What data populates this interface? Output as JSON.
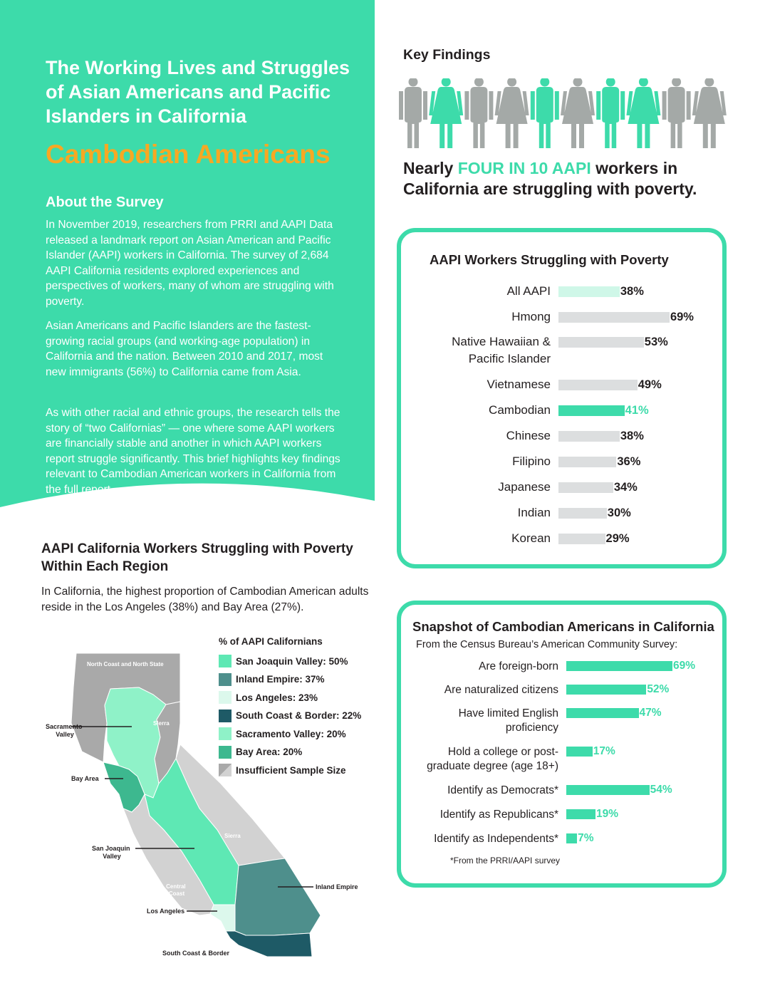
{
  "hero": {
    "title": "The Working Lives and Struggles of Asian Americans and Pacific Islanders in California",
    "subtitle": "Cambodian Americans",
    "about_heading": "About the Survey",
    "paragraphs": [
      "In November 2019, researchers from PRRI and AAPI Data released a landmark report on Asian American and Pacific Islander (AAPI) workers in California. The survey of 2,684 AAPI California residents explored experiences and perspectives of workers, many of whom are struggling with poverty.",
      "Asian Americans and Pacific Islanders are the fastest-growing racial groups (and working-age population) in California and the nation. Between 2010 and 2017, most new immigrants (56%) to California came from Asia.",
      "As with other racial and ethnic groups, the research tells the story of “two Californias” — one where some AAPI workers are financially stable and another in which AAPI workers report struggle significantly. This brief highlights key findings relevant to Cambodian American workers in California from the full report."
    ]
  },
  "region": {
    "heading": "AAPI California Workers Struggling with Poverty Within Each Region",
    "intro": "In California, the highest proportion of Cambodian American adults reside in the Los Angeles (38%) and Bay Area (27%).",
    "legend_title": "% of AAPI Californians",
    "legend": [
      {
        "label": "San Joaquin Valley: 50%",
        "color": "#5ee8b4"
      },
      {
        "label": "Inland Empire: 37%",
        "color": "#4e8f8c"
      },
      {
        "label": "Los Angeles: 23%",
        "color": "#dcf8ec"
      },
      {
        "label": "South Coast & Border: 22%",
        "color": "#1e5a66"
      },
      {
        "label": "Sacramento Valley: 20%",
        "color": "#8ff2c8"
      },
      {
        "label": "Bay Area: 20%",
        "color": "#3db88f"
      },
      {
        "label": "Insufficient Sample Size",
        "color": "#a9a9a9"
      }
    ],
    "map_labels": {
      "north_coast": "North Coast and North State",
      "sierra_north": "Sierra",
      "sierra_south": "Sierra",
      "sacramento": [
        "Sacramento",
        "Valley"
      ],
      "bay_area": "Bay Area",
      "san_joaquin": [
        "San Joaquin",
        "Valley"
      ],
      "central_coast": [
        "Central",
        "Coast"
      ],
      "inland_empire": "Inland Empire",
      "los_angeles": "Los Angeles",
      "south_coast": "South Coast & Border"
    }
  },
  "key_findings": {
    "title": "Key Findings",
    "people": [
      {
        "figure": "male",
        "highlight": false
      },
      {
        "figure": "female",
        "highlight": true
      },
      {
        "figure": "male",
        "highlight": false
      },
      {
        "figure": "female",
        "highlight": false
      },
      {
        "figure": "male",
        "highlight": true
      },
      {
        "figure": "female",
        "highlight": false
      },
      {
        "figure": "male",
        "highlight": true
      },
      {
        "figure": "female",
        "highlight": true
      },
      {
        "figure": "male",
        "highlight": false
      },
      {
        "figure": "female",
        "highlight": false
      }
    ],
    "statement_pre": "Nearly ",
    "statement_highlight": "FOUR IN 10 AAPI",
    "statement_post": " workers in California are struggling with poverty.",
    "colors": {
      "highlight": "#3ddbaa",
      "base": "#a4a9a7"
    }
  },
  "chart_data": [
    {
      "type": "bar",
      "orientation": "horizontal",
      "title": "AAPI Workers Struggling with Poverty",
      "categories": [
        "All AAPI",
        "Hmong",
        "Native Hawaiian & Pacific Islander",
        "Vietnamese",
        "Cambodian",
        "Chinese",
        "Filipino",
        "Japanese",
        "Indian",
        "Korean"
      ],
      "category_lines": [
        [
          "All AAPI"
        ],
        [
          "Hmong"
        ],
        [
          "Native Hawaiian &",
          "Pacific Islander"
        ],
        [
          "Vietnamese"
        ],
        [
          "Cambodian"
        ],
        [
          "Chinese"
        ],
        [
          "Filipino"
        ],
        [
          "Japanese"
        ],
        [
          "Indian"
        ],
        [
          "Korean"
        ]
      ],
      "values": [
        38,
        69,
        53,
        49,
        41,
        38,
        36,
        34,
        30,
        29
      ],
      "value_labels": [
        "38%",
        "69%",
        "53%",
        "49%",
        "41%",
        "38%",
        "36%",
        "34%",
        "30%",
        "29%"
      ],
      "bar_colors": [
        "#cff7e8",
        "#dcdedf",
        "#dcdedf",
        "#dcdedf",
        "#3ddbaa",
        "#dcdedf",
        "#dcdedf",
        "#dcdedf",
        "#dcdedf",
        "#dcdedf"
      ],
      "label_colors": [
        "#231f20",
        "#231f20",
        "#231f20",
        "#231f20",
        "#3ddbaa",
        "#231f20",
        "#231f20",
        "#231f20",
        "#231f20",
        "#231f20"
      ],
      "xlim": [
        0,
        100
      ]
    },
    {
      "type": "bar",
      "orientation": "horizontal",
      "title": "Snapshot of Cambodian Americans in California",
      "subtitle": "From the Census Bureau’s American Community Survey:",
      "categories": [
        "Are foreign-born",
        "Are naturalized citizens",
        "Have limited English proficiency",
        "Hold a college or post-graduate degree (age 18+)",
        "Identify as Democrats*",
        "Identify as Republicans*",
        "Identify as Independents*"
      ],
      "category_lines": [
        [
          "Are foreign-born"
        ],
        [
          "Are naturalized citizens"
        ],
        [
          "Have limited English",
          "proficiency"
        ],
        [
          "Hold a college or post-",
          "graduate degree (age 18+)"
        ],
        [
          "Identify as Democrats*"
        ],
        [
          "Identify as Republicans*"
        ],
        [
          "Identify as Independents*"
        ]
      ],
      "values": [
        69,
        52,
        47,
        17,
        54,
        19,
        7
      ],
      "value_labels": [
        "69%",
        "52%",
        "47%",
        "17%",
        "54%",
        "19%",
        "7%"
      ],
      "bar_color": "#3ddbaa",
      "footnote": "*From the PRRI/AAPI survey",
      "xlim": [
        0,
        100
      ]
    }
  ],
  "colors": {
    "teal": "#3ddbaa",
    "orange": "#f7a823",
    "text": "#231f20"
  }
}
